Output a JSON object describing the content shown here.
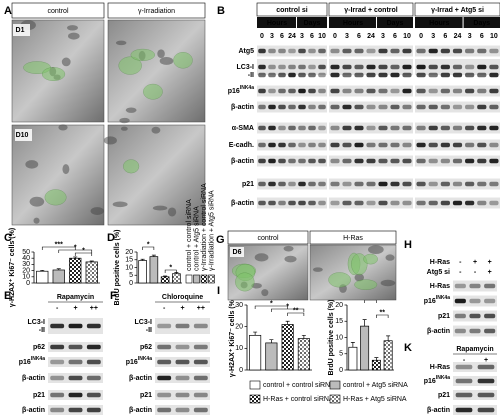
{
  "panel_A": {
    "letter": "A",
    "headers": [
      "control",
      "γ-Irradiation"
    ],
    "labels": [
      "D1",
      "D10"
    ]
  },
  "panel_B": {
    "letter": "B",
    "groups": [
      "control si",
      "γ-Irrad + control",
      "γ-Irrad + Atg5 si"
    ],
    "units": [
      "Hours",
      "Days"
    ],
    "times": [
      "0",
      "3",
      "6",
      "24",
      "3",
      "6",
      "10"
    ],
    "rows": [
      {
        "label": "Atg5"
      },
      {
        "label": "LC3-I",
        "extra": "-II"
      },
      {
        "label": "p16",
        "sup": "INK4a"
      },
      {
        "label": "β-actin"
      },
      {
        "label": "α-SMA"
      },
      {
        "label": "E-cadh."
      },
      {
        "label": "β-actin"
      },
      {
        "label": "p21"
      },
      {
        "label": "β-actin"
      }
    ]
  },
  "panel_C": {
    "letter": "C",
    "type": "bar",
    "ylabel": "γ-H2AX⁺ Ki67⁻ cells (%)",
    "values": [
      19,
      21,
      40,
      34
    ],
    "errors": [
      1.5,
      2,
      2,
      1.5
    ],
    "ylim": [
      0,
      50
    ],
    "yticks": [
      0,
      10,
      20,
      30,
      40,
      50
    ],
    "significance": [
      "***",
      "*",
      "*"
    ]
  },
  "panel_D": {
    "letter": "D",
    "type": "bar",
    "ylabel": "BrdU positive cells (%)",
    "values": [
      14.5,
      17,
      4,
      6
    ],
    "errors": [
      0.8,
      1,
      0.5,
      0.7
    ],
    "ylim": [
      0,
      20
    ],
    "yticks": [
      0,
      5,
      10,
      15,
      20
    ],
    "significance": [
      "*",
      "*"
    ],
    "legend": [
      "control + control siRNA",
      "control + Atg5 siRNA",
      "γ-Irradiation + control siRNA",
      "γ-Irradiation + Atg5 siRNA"
    ]
  },
  "panel_E": {
    "letter": "E",
    "treatment": "Rapamycin",
    "signs": [
      "-",
      "+",
      "++"
    ],
    "rows": [
      {
        "label": "LC3-I",
        "extra": "-II"
      },
      {
        "label": "p62"
      },
      {
        "label": "p16",
        "sup": "INK4a"
      },
      {
        "label": "β-actin"
      },
      {
        "label": "p21"
      },
      {
        "label": "β-actin"
      }
    ]
  },
  "panel_F": {
    "letter": "F",
    "treatment": "Chloroquine",
    "signs": [
      "-",
      "+",
      "++"
    ],
    "rows": [
      {
        "label": "LC3-I",
        "extra": "-II"
      },
      {
        "label": "p62"
      },
      {
        "label": "p16",
        "sup": "INK4a"
      },
      {
        "label": "β-actin"
      },
      {
        "label": "p21"
      },
      {
        "label": "β-actin"
      }
    ]
  },
  "panel_G": {
    "letter": "G",
    "headers": [
      "control",
      "H-Ras"
    ],
    "labels": [
      "D6"
    ]
  },
  "panel_H": {
    "letter": "H",
    "conditions": [
      {
        "name": "H-Ras",
        "signs": [
          "-",
          "+",
          "+"
        ]
      },
      {
        "name": "Atg5 si",
        "signs": [
          "-",
          "-",
          "+"
        ]
      }
    ],
    "rows": [
      {
        "label": "H-Ras"
      },
      {
        "label": "p16",
        "sup": "INK4a"
      },
      {
        "label": "p21"
      },
      {
        "label": "β-actin"
      }
    ]
  },
  "panel_I": {
    "letter": "I",
    "type": "bar",
    "ylabel": "γ-H2AX⁺ Ki67⁻ cells (%)",
    "values": [
      16,
      12.5,
      21,
      14.5
    ],
    "errors": [
      1.5,
      1.5,
      1.5,
      1.5
    ],
    "ylim": [
      0,
      30
    ],
    "yticks": [
      0,
      10,
      20,
      30
    ],
    "significance": [
      "*",
      "*",
      "**"
    ]
  },
  "panel_J": {
    "letter": "J",
    "type": "bar",
    "ylabel": "BrdU positive cells (%)",
    "values": [
      7,
      13.5,
      3,
      9
    ],
    "errors": [
      1.5,
      2,
      0.8,
      1.5
    ],
    "ylim": [
      0,
      20
    ],
    "yticks": [
      0,
      5,
      10,
      15,
      20
    ],
    "significance": [
      "*",
      "**"
    ],
    "legend": [
      "control + control siRNA",
      "control + Atg5 siRNA",
      "H-Ras + control siRNA",
      "H-Ras + Atg5 siRNA"
    ]
  },
  "panel_K": {
    "letter": "K",
    "treatment": "Rapamycin",
    "signs": [
      "-",
      "+"
    ],
    "rows": [
      {
        "label": "H-Ras"
      },
      {
        "label": "p16",
        "sup": "INK4a"
      },
      {
        "label": "p21"
      },
      {
        "label": "β-actin"
      }
    ]
  }
}
